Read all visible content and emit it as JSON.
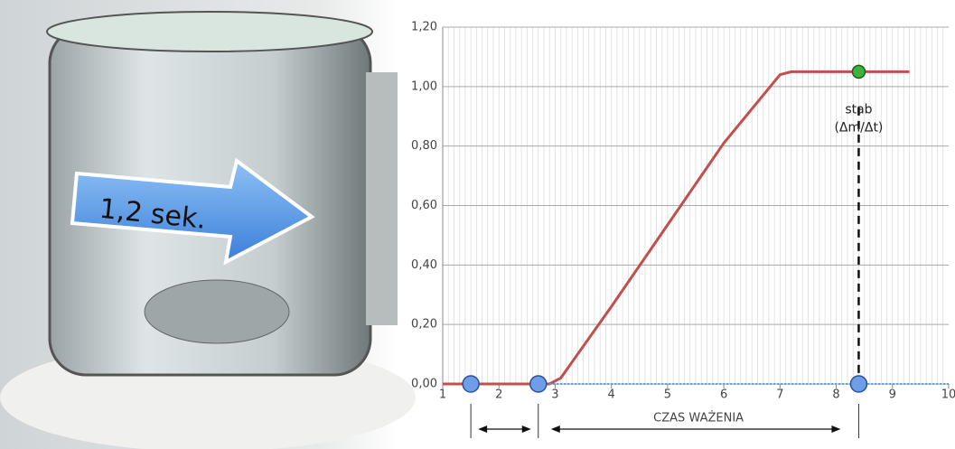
{
  "photo": {
    "label": "1,2 sek."
  },
  "chart_data": {
    "type": "line",
    "xlim": [
      1,
      10
    ],
    "ylim": [
      0,
      1.2
    ],
    "xticks": [
      1,
      2,
      3,
      4,
      5,
      6,
      7,
      8,
      9,
      10
    ],
    "yticks": [
      {
        "value": 0,
        "label": "0,00"
      },
      {
        "value": 0.2,
        "label": "0,20"
      },
      {
        "value": 0.4,
        "label": "0,40"
      },
      {
        "value": 0.6,
        "label": "0,60"
      },
      {
        "value": 0.8,
        "label": "0,80"
      },
      {
        "value": 1.0,
        "label": "1,00"
      },
      {
        "value": 1.2,
        "label": "1,20"
      }
    ],
    "grid": true,
    "series": [
      {
        "color": "#c0504d",
        "x": [
          1,
          2.9,
          3.1,
          4,
          6,
          7,
          7.2,
          9.3
        ],
        "values": [
          0,
          0,
          0.02,
          0.26,
          0.81,
          1.04,
          1.05,
          1.05
        ]
      },
      {
        "color": "#5b9bd5",
        "x": [
          2.9,
          10
        ],
        "values": [
          0,
          0
        ]
      }
    ],
    "markers": {
      "color": "#6f9ee8",
      "x": [
        1.5,
        2.7,
        8.4
      ],
      "values": [
        0,
        0,
        0
      ]
    },
    "stab_point": {
      "color": "#3cb33c",
      "x": 8.4,
      "value": 1.05
    },
    "annotations": [
      "stab",
      "(Δm/Δt)"
    ],
    "span_label": "CZAS WAŻENIA"
  }
}
